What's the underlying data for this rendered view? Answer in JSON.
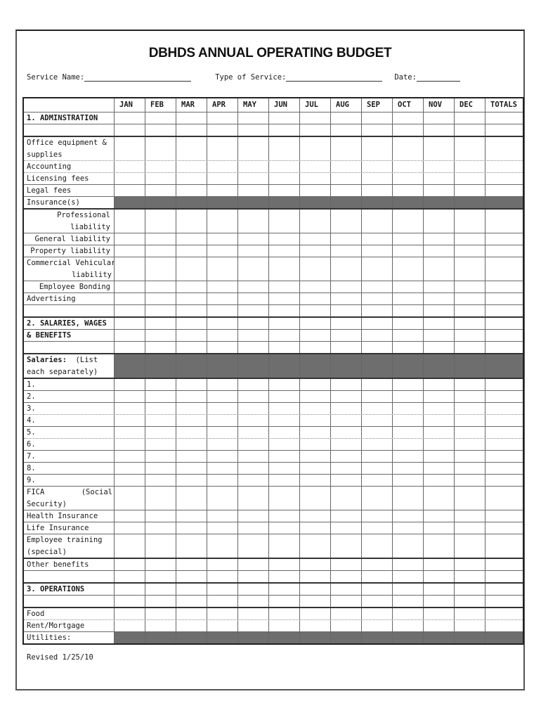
{
  "title": "DBHDS ANNUAL OPERATING BUDGET",
  "form_fields": [
    {
      "id": "service-name",
      "label": "Service Name:",
      "value": ""
    },
    {
      "id": "type-of-service",
      "label": "Type of Service:",
      "value": ""
    },
    {
      "id": "date",
      "label": "Date:",
      "value": ""
    }
  ],
  "footer_note": "Revised 1/25/10",
  "colors": {
    "row_shade": "#6e6e6e",
    "border_dark": "#222222"
  },
  "table": {
    "month_columns": [
      "JAN",
      "FEB",
      "MAR",
      "APR",
      "MAY",
      "JUN",
      "JUL",
      "AUG",
      "SEP",
      "OCT",
      "NOV",
      "DEC"
    ],
    "totals_column": "TOTALS",
    "rows": [
      {
        "name": "section-1-administration",
        "lines": [
          "1. ADMINSTRATION"
        ],
        "bold": true,
        "bt": "s"
      },
      {
        "name": "spacer-1",
        "lines": [
          ""
        ],
        "bt": "s"
      },
      {
        "name": "office-equipment-supplies",
        "lines": [
          "Office equipment &",
          "supplies"
        ],
        "bt": "k"
      },
      {
        "name": "accounting",
        "lines": [
          "Accounting"
        ],
        "bt": "d"
      },
      {
        "name": "licensing-fees",
        "lines": [
          "Licensing fees"
        ],
        "bt": "d"
      },
      {
        "name": "legal-fees",
        "lines": [
          "Legal fees"
        ],
        "bt": "s"
      },
      {
        "name": "insurances",
        "lines": [
          "Insurance(s)"
        ],
        "shaded": true,
        "bt": "s"
      },
      {
        "name": "professional-liability",
        "lines": [
          "Professional",
          "liability"
        ],
        "align": "right",
        "bt": "k"
      },
      {
        "name": "general-liability",
        "lines": [
          "General liability"
        ],
        "align": "right",
        "bt": "s"
      },
      {
        "name": "property-liability",
        "lines": [
          "Property liability"
        ],
        "align": "right",
        "bt": "s"
      },
      {
        "name": "commercial-vehicular-liability",
        "lines": [
          "Commercial Vehicular",
          {
            "right": "liability"
          }
        ],
        "bt": "s"
      },
      {
        "name": "employee-bonding",
        "lines": [
          "Employee Bonding"
        ],
        "align": "right",
        "bt": "s"
      },
      {
        "name": "advertising",
        "lines": [
          "Advertising"
        ],
        "bt": "s"
      },
      {
        "name": "spacer-2",
        "lines": [
          ""
        ],
        "bt": "s"
      },
      {
        "name": "section-2-salaries-wages",
        "lines": [
          "2. SALARIES, WAGES"
        ],
        "bold": true,
        "bt": "k"
      },
      {
        "name": "section-2-benefits",
        "lines": [
          "& BENEFITS"
        ],
        "bold": true,
        "bt": "s"
      },
      {
        "name": "spacer-3",
        "lines": [
          ""
        ],
        "bt": "s"
      },
      {
        "name": "salaries-list",
        "lines": [
          {
            "parts": [
              {
                "text": "Salaries:",
                "bold": true
              },
              {
                "text": "  (List",
                "bold": false
              }
            ]
          },
          "each separately)"
        ],
        "shaded": true,
        "bt": "k"
      },
      {
        "name": "salary-1",
        "lines": [
          "1."
        ],
        "bt": "k"
      },
      {
        "name": "salary-2",
        "lines": [
          "2."
        ],
        "bt": "s"
      },
      {
        "name": "salary-3",
        "lines": [
          "3."
        ],
        "bt": "s"
      },
      {
        "name": "salary-4",
        "lines": [
          "4."
        ],
        "bt": "d"
      },
      {
        "name": "salary-5",
        "lines": [
          "5."
        ],
        "bt": "s"
      },
      {
        "name": "salary-6",
        "lines": [
          "6."
        ],
        "bt": "d"
      },
      {
        "name": "salary-7",
        "lines": [
          "7."
        ],
        "bt": "s"
      },
      {
        "name": "salary-8",
        "lines": [
          "8."
        ],
        "bt": "s"
      },
      {
        "name": "salary-9",
        "lines": [
          "9."
        ],
        "bt": "s"
      },
      {
        "name": "fica-social-security",
        "lines": [
          {
            "left": "FICA",
            "right": "(Social"
          },
          "Security)"
        ],
        "bt": "s"
      },
      {
        "name": "health-insurance",
        "lines": [
          "Health Insurance"
        ],
        "bt": "s"
      },
      {
        "name": "life-insurance",
        "lines": [
          "Life Insurance"
        ],
        "bt": "s"
      },
      {
        "name": "employee-training-special",
        "lines": [
          "Employee training",
          "(special)"
        ],
        "bt": "s"
      },
      {
        "name": "other-benefits",
        "lines": [
          "Other benefits"
        ],
        "bt": "k"
      },
      {
        "name": "spacer-4",
        "lines": [
          ""
        ],
        "bt": "s"
      },
      {
        "name": "section-3-operations",
        "lines": [
          "3. OPERATIONS"
        ],
        "bold": true,
        "bt": "k"
      },
      {
        "name": "spacer-5",
        "lines": [
          ""
        ],
        "bt": "s"
      },
      {
        "name": "food",
        "lines": [
          "Food"
        ],
        "bt": "k"
      },
      {
        "name": "rent-mortgage",
        "lines": [
          "Rent/Mortgage"
        ],
        "bt": "d"
      },
      {
        "name": "utilities",
        "lines": [
          "Utilities:"
        ],
        "shaded": true,
        "bt": "s"
      }
    ]
  }
}
